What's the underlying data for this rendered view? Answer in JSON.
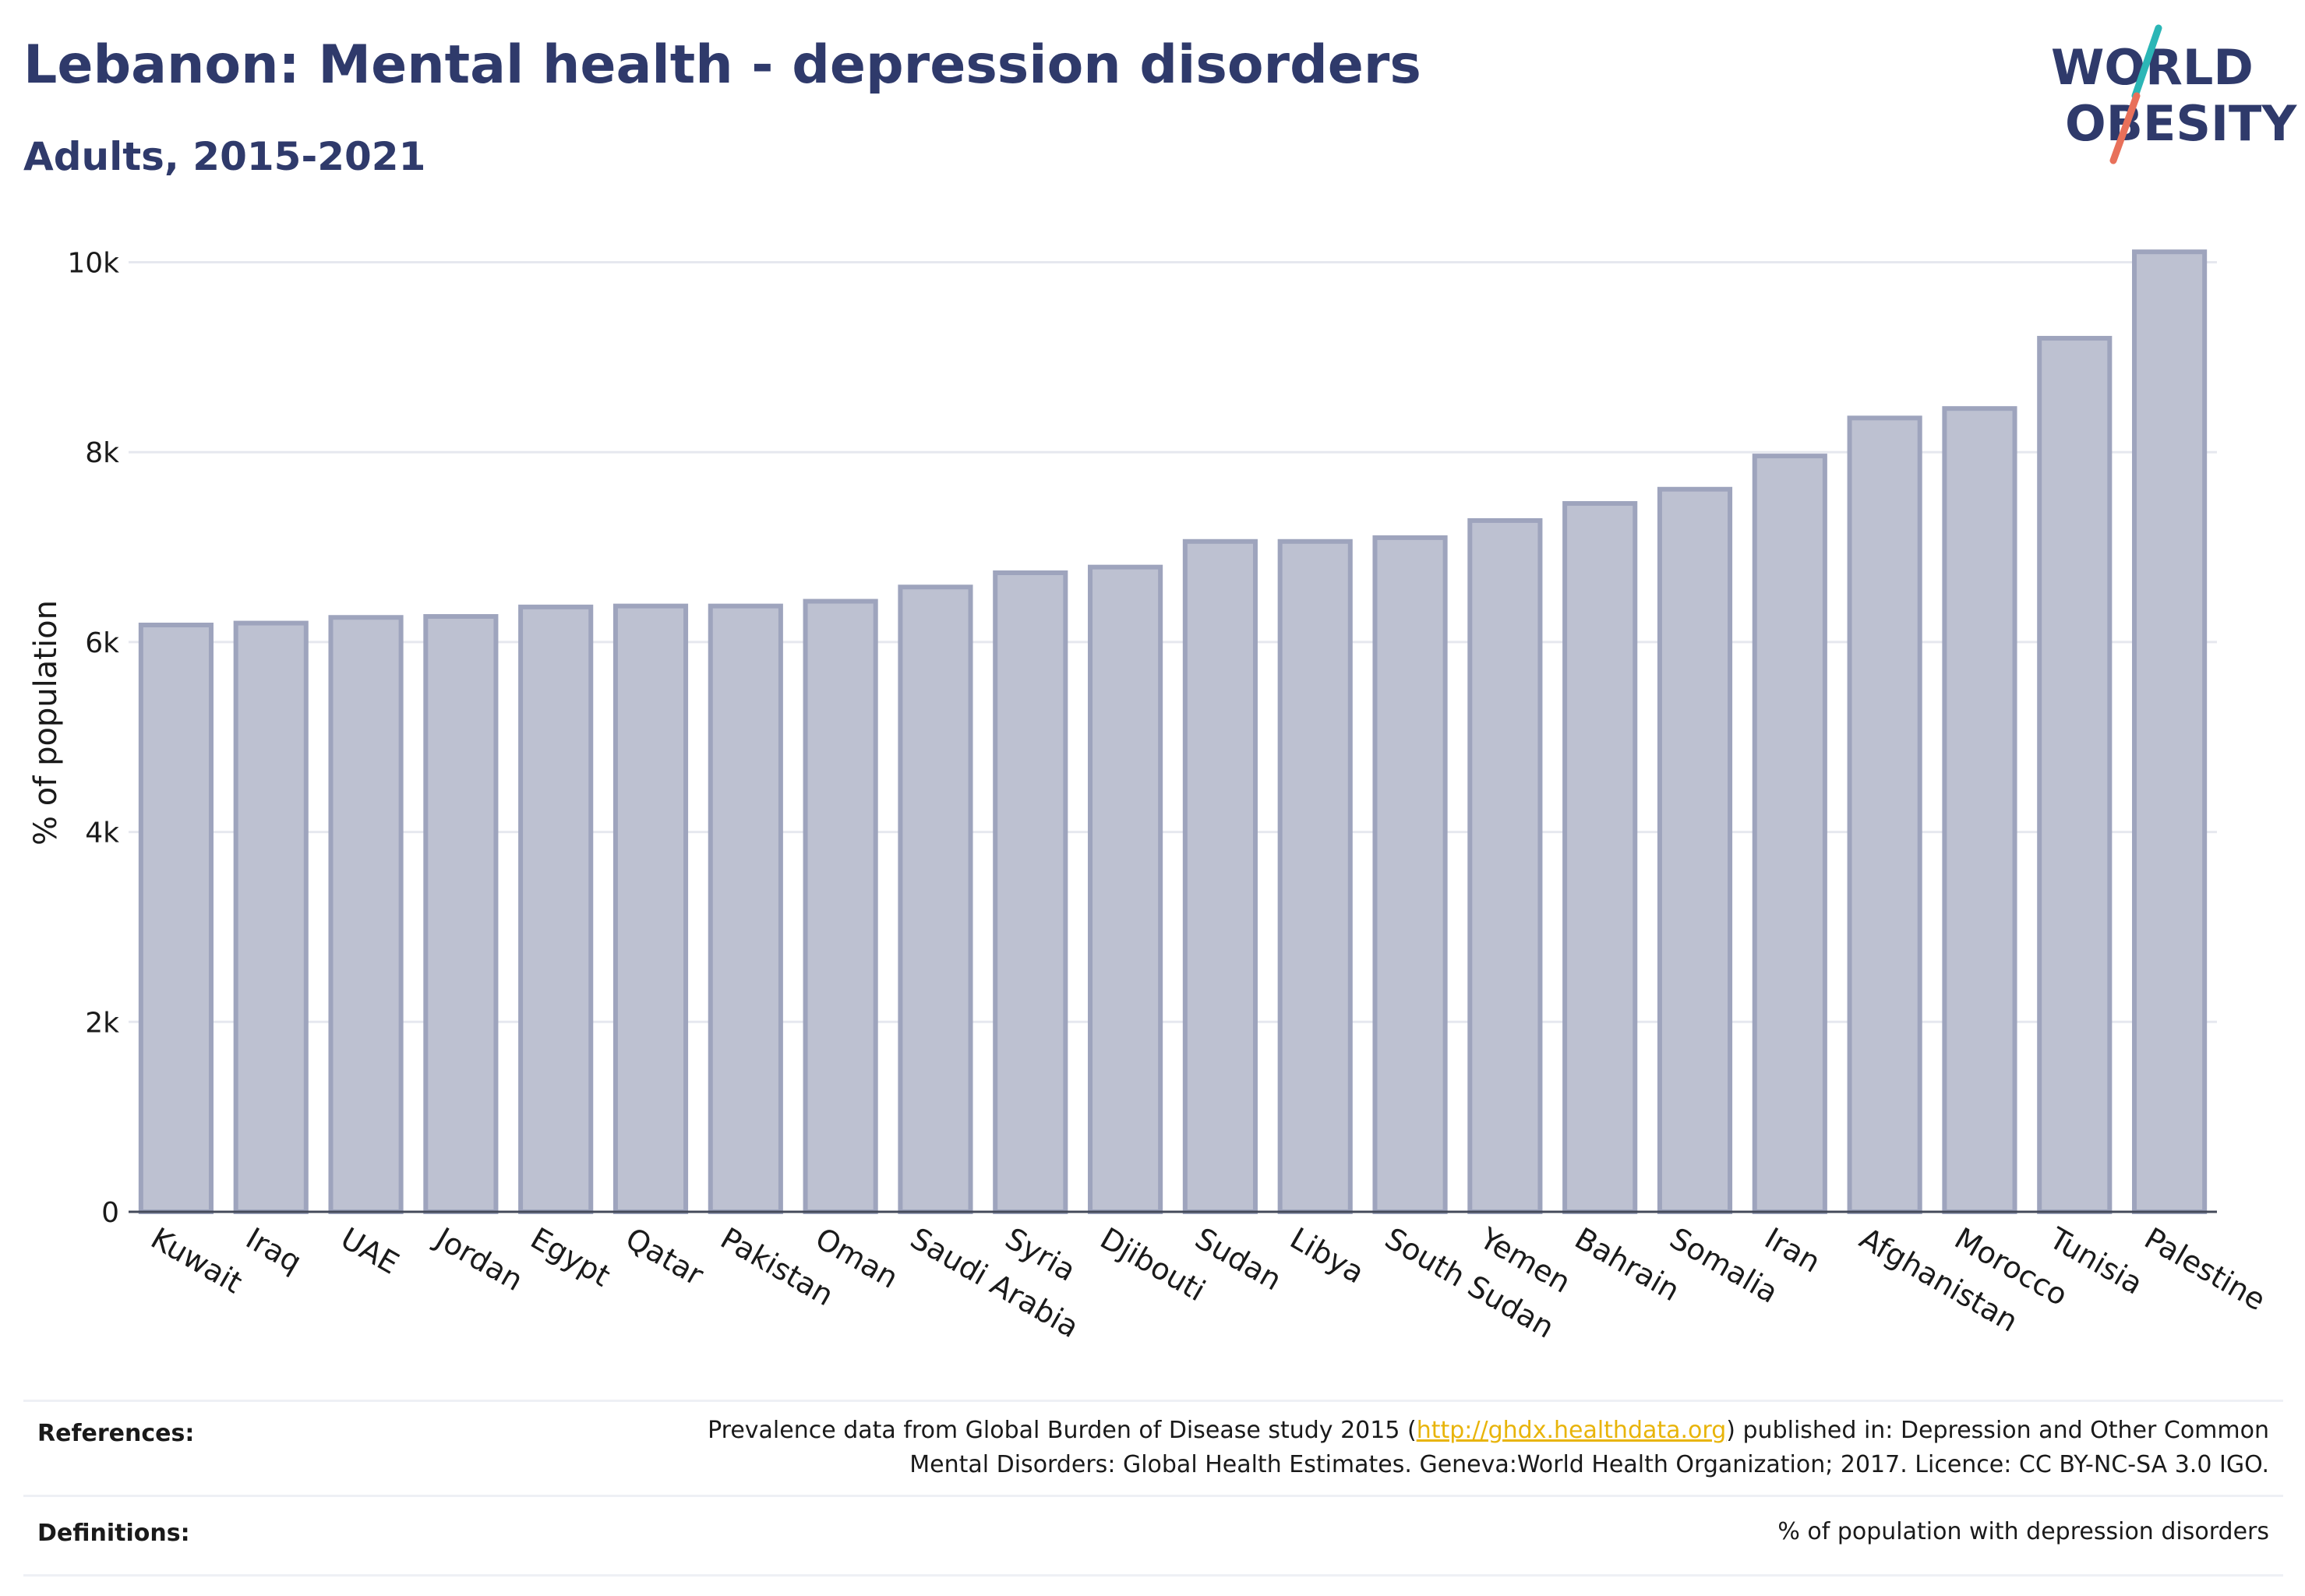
{
  "title": "Lebanon: Mental health - depression disorders",
  "subtitle": "Adults, 2015-2021",
  "logo": {
    "line1": "WORLD",
    "line2": "OBESITY",
    "slash_colors": [
      "#2bb6b6",
      "#e8705a"
    ]
  },
  "colors": {
    "bar_fill": "#bdc1d1",
    "bar_stroke": "#9ea4bd",
    "grid": "#e6e8ef",
    "text": "#1a1a1a",
    "title": "#2f3a6b"
  },
  "chart_data": {
    "type": "bar",
    "ylabel": "% of population",
    "ylim": [
      0,
      10300
    ],
    "yticks": [
      0,
      2000,
      4000,
      6000,
      8000,
      10000
    ],
    "ytick_labels": [
      "0",
      "2k",
      "4k",
      "6k",
      "8k",
      "10k"
    ],
    "grid": true,
    "categories": [
      "Kuwait",
      "Iraq",
      "UAE",
      "Jordan",
      "Egypt",
      "Qatar",
      "Pakistan",
      "Oman",
      "Saudi Arabia",
      "Syria",
      "Djibouti",
      "Sudan",
      "Libya",
      "South Sudan",
      "Yemen",
      "Bahrain",
      "Somalia",
      "Iran",
      "Afghanistan",
      "Morocco",
      "Tunisia",
      "Palestine"
    ],
    "values": [
      6180,
      6200,
      6260,
      6270,
      6370,
      6380,
      6380,
      6430,
      6580,
      6730,
      6790,
      7060,
      7060,
      7100,
      7280,
      7460,
      7610,
      7960,
      8360,
      8460,
      9200,
      10110
    ]
  },
  "references": {
    "label": "References:",
    "line1_before": "Prevalence data from Global Burden of Disease study 2015 (",
    "link": "http://ghdx.healthdata.org",
    "line1_after": ") published in: Depression and Other Common",
    "line2": "Mental Disorders: Global Health Estimates. Geneva:World Health Organization; 2017. Licence: CC BY-NC-SA 3.0 IGO."
  },
  "definitions": {
    "label": "Definitions:",
    "text": "% of population with depression disorders"
  }
}
